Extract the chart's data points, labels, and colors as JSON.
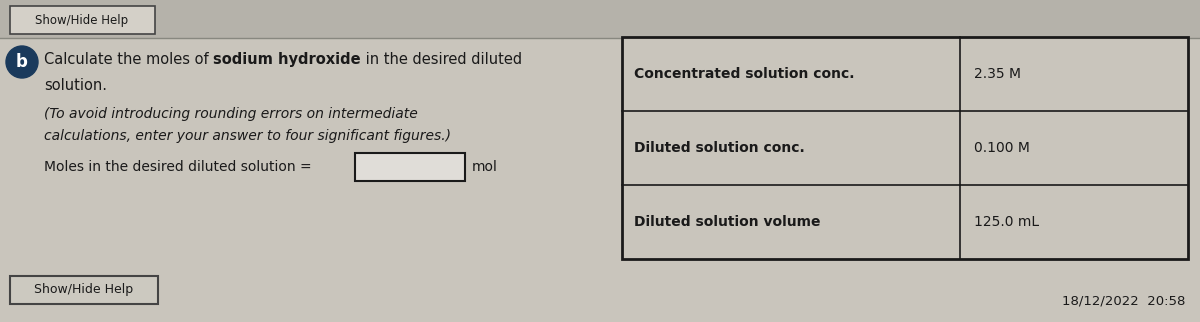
{
  "bg_color": "#c9c5bc",
  "top_strip_color": "#b8b4ac",
  "question_label": "b",
  "label_bg": "#1a3a5c",
  "label_text_color": "#ffffff",
  "main_text_pre": "Calculate the moles of ",
  "main_text_bold": "sodium hydroxide",
  "main_text_post": " in the desired diluted",
  "main_text_line2": "solution.",
  "italic_line1": "(To avoid introducing rounding errors on intermediate",
  "italic_line2": "calculations, enter your answer to four significant figures.)",
  "input_label": "Moles in the desired diluted solution =",
  "input_unit": "mol",
  "show_hide_btn": "Show/Hide Help",
  "table_headers": [
    "Concentrated solution conc.",
    "Diluted solution conc.",
    "Diluted solution volume"
  ],
  "table_values": [
    "2.35 M",
    "0.100 M",
    "125.0 mL"
  ],
  "timestamp": "18/12/2022  20:58",
  "table_border_color": "#1a1a1a",
  "text_color": "#1a1a1a",
  "input_box_color": "#e0ddd8",
  "btn_border_color": "#444444",
  "top_btn_text": "Show/Hide Help"
}
